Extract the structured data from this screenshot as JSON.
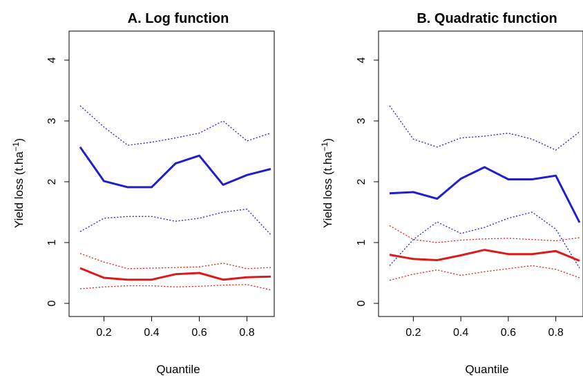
{
  "chart_data": [
    {
      "type": "line",
      "title": "A. Log function",
      "xlabel": "Quantile",
      "ylabel": "Yield loss (t.ha",
      "ylabel_sup": "−1",
      "ylabel_close": ")",
      "xlim": [
        0.1,
        0.9
      ],
      "ylim": [
        0,
        4
      ],
      "xticks": [
        0.2,
        0.4,
        0.6,
        0.8
      ],
      "xtick_labels": [
        "0.2",
        "0.4",
        "0.6",
        "0.8"
      ],
      "yticks": [
        0,
        1,
        2,
        3,
        4
      ],
      "ytick_labels": [
        "0",
        "1",
        "2",
        "3",
        "4"
      ],
      "grid": false,
      "x": [
        0.1,
        0.2,
        0.3,
        0.4,
        0.5,
        0.6,
        0.7,
        0.8,
        0.9
      ],
      "series": [
        {
          "color": "#1f1fcc",
          "style": "solid",
          "values": [
            2.57,
            2.01,
            1.91,
            1.91,
            2.3,
            2.43,
            1.95,
            2.11,
            2.21
          ]
        },
        {
          "color": "#1f1fcc",
          "style": "dotted",
          "values": [
            3.25,
            2.9,
            2.6,
            2.65,
            2.72,
            2.8,
            3.0,
            2.67,
            2.8
          ]
        },
        {
          "color": "#1f1fcc",
          "style": "dotted",
          "values": [
            1.18,
            1.4,
            1.43,
            1.43,
            1.35,
            1.4,
            1.5,
            1.55,
            1.13
          ]
        },
        {
          "color": "#dd1a1a",
          "style": "solid",
          "values": [
            0.58,
            0.42,
            0.39,
            0.39,
            0.48,
            0.5,
            0.39,
            0.43,
            0.44
          ]
        },
        {
          "color": "#dd1a1a",
          "style": "dotted",
          "values": [
            0.82,
            0.68,
            0.57,
            0.58,
            0.59,
            0.6,
            0.66,
            0.57,
            0.59
          ]
        },
        {
          "color": "#dd1a1a",
          "style": "dotted",
          "values": [
            0.24,
            0.27,
            0.29,
            0.29,
            0.27,
            0.28,
            0.3,
            0.31,
            0.22
          ]
        }
      ]
    },
    {
      "type": "line",
      "title": "B. Quadratic function",
      "xlabel": "Quantile",
      "ylabel": "Yield loss (t.ha",
      "ylabel_sup": "−1",
      "ylabel_close": ")",
      "xlim": [
        0.1,
        0.9
      ],
      "ylim": [
        0,
        4
      ],
      "xticks": [
        0.2,
        0.4,
        0.6,
        0.8
      ],
      "xtick_labels": [
        "0.2",
        "0.4",
        "0.6",
        "0.8"
      ],
      "yticks": [
        0,
        1,
        2,
        3,
        4
      ],
      "ytick_labels": [
        "0",
        "1",
        "2",
        "3",
        "4"
      ],
      "grid": false,
      "x": [
        0.1,
        0.2,
        0.3,
        0.4,
        0.5,
        0.6,
        0.7,
        0.8,
        0.9
      ],
      "series": [
        {
          "color": "#1f1fcc",
          "style": "solid",
          "values": [
            1.81,
            1.83,
            1.72,
            2.05,
            2.24,
            2.04,
            2.04,
            2.1,
            1.33
          ]
        },
        {
          "color": "#1f1fcc",
          "style": "dotted",
          "values": [
            3.25,
            2.7,
            2.57,
            2.72,
            2.75,
            2.8,
            2.7,
            2.52,
            2.82
          ]
        },
        {
          "color": "#1f1fcc",
          "style": "dotted",
          "values": [
            0.62,
            1.05,
            1.34,
            1.15,
            1.25,
            1.4,
            1.5,
            1.22,
            0.58
          ]
        },
        {
          "color": "#dd1a1a",
          "style": "solid",
          "values": [
            0.8,
            0.73,
            0.71,
            0.79,
            0.88,
            0.81,
            0.81,
            0.86,
            0.7
          ]
        },
        {
          "color": "#dd1a1a",
          "style": "dotted",
          "values": [
            1.28,
            1.05,
            1.0,
            1.04,
            1.06,
            1.07,
            1.05,
            1.03,
            1.08
          ]
        },
        {
          "color": "#dd1a1a",
          "style": "dotted",
          "values": [
            0.38,
            0.48,
            0.55,
            0.46,
            0.52,
            0.57,
            0.62,
            0.56,
            0.42
          ]
        }
      ]
    }
  ]
}
